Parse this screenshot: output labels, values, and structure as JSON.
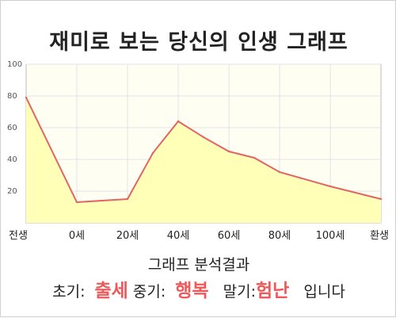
{
  "title": "재미로 보는 당신의 인생 그래프",
  "chart_data": {
    "type": "area",
    "title": "재미로 보는 당신의 인생 그래프",
    "xlabel": "",
    "ylabel": "",
    "x_tick_labels": [
      "전생",
      "0세",
      "20세",
      "40세",
      "60세",
      "80세",
      "100세",
      "환생"
    ],
    "x": [
      "전생",
      "0세",
      "20세",
      "30세",
      "40세",
      "50세",
      "60세",
      "70세",
      "80세",
      "100세",
      "환생"
    ],
    "values": [
      79,
      13,
      15,
      44,
      64,
      54,
      45,
      41,
      32,
      23,
      15
    ],
    "ylim": [
      0,
      100
    ],
    "y_ticks": [
      20,
      40,
      60,
      80,
      100
    ],
    "grid": true,
    "colors": {
      "line": "#e06666",
      "fill": "#ffffb8",
      "plot_bg": "#fffef2",
      "grid": "#e3e3e3"
    }
  },
  "summary": {
    "heading": "그래프 분석결과",
    "early_label": "초기:",
    "early_value": "출세",
    "middle_label": "중기:",
    "middle_value": "행복",
    "late_label": "말기:",
    "late_value": "험난",
    "ending": "입니다"
  }
}
